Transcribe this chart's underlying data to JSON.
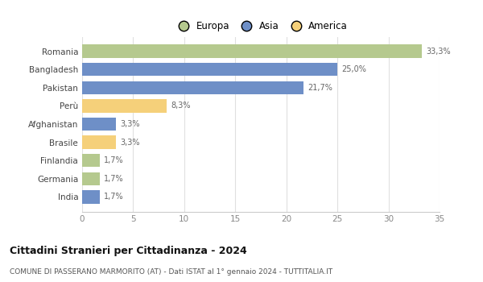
{
  "countries": [
    "Romania",
    "Bangladesh",
    "Pakistan",
    "Perù",
    "Afghanistan",
    "Brasile",
    "Finlandia",
    "Germania",
    "India"
  ],
  "values": [
    33.3,
    25.0,
    21.7,
    8.3,
    3.3,
    3.3,
    1.7,
    1.7,
    1.7
  ],
  "labels": [
    "33,3%",
    "25,0%",
    "21,7%",
    "8,3%",
    "3,3%",
    "3,3%",
    "1,7%",
    "1,7%",
    "1,7%"
  ],
  "colors": [
    "#b5c98e",
    "#6e8fc7",
    "#6e8fc7",
    "#f5d07a",
    "#6e8fc7",
    "#f5d07a",
    "#b5c98e",
    "#b5c98e",
    "#6e8fc7"
  ],
  "legend_labels": [
    "Europa",
    "Asia",
    "America"
  ],
  "legend_colors": [
    "#b5c98e",
    "#6e8fc7",
    "#f5d07a"
  ],
  "title": "Cittadini Stranieri per Cittadinanza - 2024",
  "subtitle": "COMUNE DI PASSERANO MARMORITO (AT) - Dati ISTAT al 1° gennaio 2024 - TUTTITALIA.IT",
  "xlim": [
    0,
    35
  ],
  "xticks": [
    0,
    5,
    10,
    15,
    20,
    25,
    30,
    35
  ],
  "bg_color": "#ffffff",
  "grid_color": "#e0e0e0",
  "bar_height": 0.72
}
